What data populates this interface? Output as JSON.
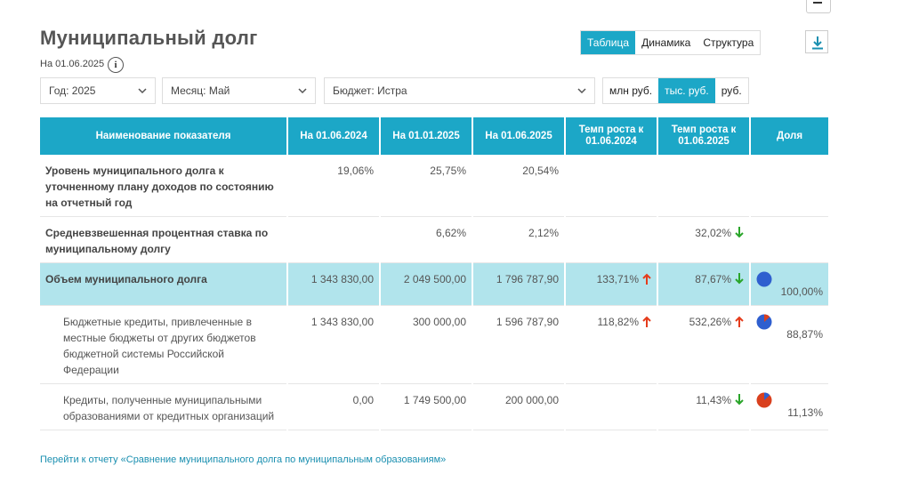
{
  "page": {
    "title": "Муниципальный долг",
    "as_of": "На 01.06.2025",
    "info_label": "i"
  },
  "view_tabs": [
    "Таблица",
    "Динамика",
    "Структура"
  ],
  "filters": {
    "year": "Год: 2025",
    "month": "Месяц: Май",
    "budget": "Бюджет: Истра"
  },
  "units": [
    "млн руб.",
    "тыс. руб.",
    "руб."
  ],
  "table": {
    "headers": [
      "Наименование показателя",
      "На 01.06.2024",
      "На 01.01.2025",
      "На 01.06.2025",
      "Темп роста к 01.06.2024",
      "Темп роста к 01.06.2025",
      "Доля"
    ],
    "rows": [
      {
        "name": "Уровень муниципального долга к уточненному плану доходов по состоянию на отчетный год",
        "v1": "19,06%",
        "v2": "25,75%",
        "v3": "20,54%",
        "g1": "",
        "g2": "",
        "share": ""
      },
      {
        "name": "Средневзвешенная процентная ставка по муниципальному долгу",
        "v1": "",
        "v2": "6,62%",
        "v3": "2,12%",
        "g1": "",
        "g2": "32,02%",
        "share": ""
      },
      {
        "name": "Объем муниципального долга",
        "v1": "1 343 830,00",
        "v2": "2 049 500,00",
        "v3": "1 796 787,90",
        "g1": "133,71%",
        "g2": "87,67%",
        "share": "100,00%"
      },
      {
        "name": "Бюджетные кредиты, привлеченные в местные бюджеты от других бюджетов бюджетной системы Российской Федерации",
        "v1": "1 343 830,00",
        "v2": "300 000,00",
        "v3": "1 596 787,90",
        "g1": "118,82%",
        "g2": "532,26%",
        "share": "88,87%"
      },
      {
        "name": "Кредиты, полученные муниципальными образованиями от кредитных организаций",
        "v1": "0,00",
        "v2": "1 749 500,00",
        "v3": "200 000,00",
        "g1": "",
        "g2": "11,43%",
        "share": "11,13%"
      }
    ]
  },
  "link_text": "Перейти к отчету «Сравнение муниципального долга по муниципальным образованиям»",
  "colors": {
    "accent": "#1ca7c7",
    "highlight_row": "#b1e4ec",
    "arrow_up": "#e53c1c",
    "arrow_down": "#2aa52a",
    "pie_blue": "#2f5fcf",
    "pie_red": "#d9401e"
  },
  "icons": [
    "info-icon",
    "download-icon",
    "chevron-down-icon",
    "arrow-up-icon",
    "arrow-down-icon",
    "pie-chart-icon",
    "menu-icon"
  ]
}
